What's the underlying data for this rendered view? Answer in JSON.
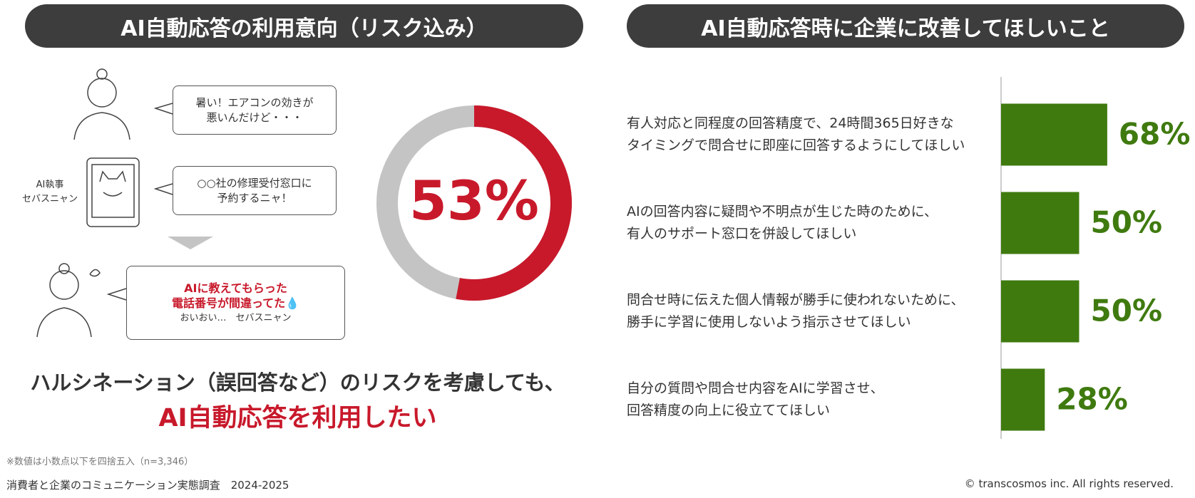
{
  "chart_data": [
    {
      "type": "donut",
      "title": "AI自動応答の利用意向（リスク込み）",
      "values": [
        53
      ],
      "value_labels": [
        "53%"
      ],
      "color": "#c8192b",
      "track_color": "#c4c4c4",
      "ylim": [
        0,
        100
      ]
    },
    {
      "type": "barh",
      "title": "AI自動応答時に企業に改善してほしいこと",
      "categories": [
        "有人対応と同程度の回答精度で、24時間365日好きな\nタイミングで問合せに即座に回答するようにしてほしい",
        "AIの回答内容に疑問や不明点が生じた時のために、\n有人のサポート窓口を併設してほしい",
        "問合せ時に伝えた個人情報が勝手に使われないために、\n勝手に学習に使用しないよう指示させてほしい",
        "自分の質問や問合せ内容をAIに学習させ、\n回答精度の向上に役立ててほしい"
      ],
      "values": [
        68,
        50,
        50,
        28
      ],
      "value_labels": [
        "68%",
        "50%",
        "50%",
        "28%"
      ],
      "color": "#3f7a0f",
      "xlim": [
        0,
        100
      ]
    }
  ],
  "illustration": {
    "bubble_1": "暑い！エアコンの効きが\n悪いんだけど・・・",
    "ai_name": "AI執事\nセバスニャン",
    "bubble_2": "○○社の修理受付窓口に\n予約するニャ！",
    "bubble_3": "AIに教えてもらった\n電話番号が間違ってた💧",
    "bubble_3_sub": "おいおい…　セバスニャン"
  },
  "conclusion": {
    "line_1": "ハルシネーション（誤回答など）のリスクを考慮しても、",
    "line_2": "AI自動応答を利用したい"
  },
  "notes": {
    "footnote": "※数値は小数点以下を四捨五入（n=3,346）",
    "source": "消費者と企業のコミュニケーション実態調査　2024-2025",
    "copyright": "© transcosmos inc. All rights reserved."
  }
}
